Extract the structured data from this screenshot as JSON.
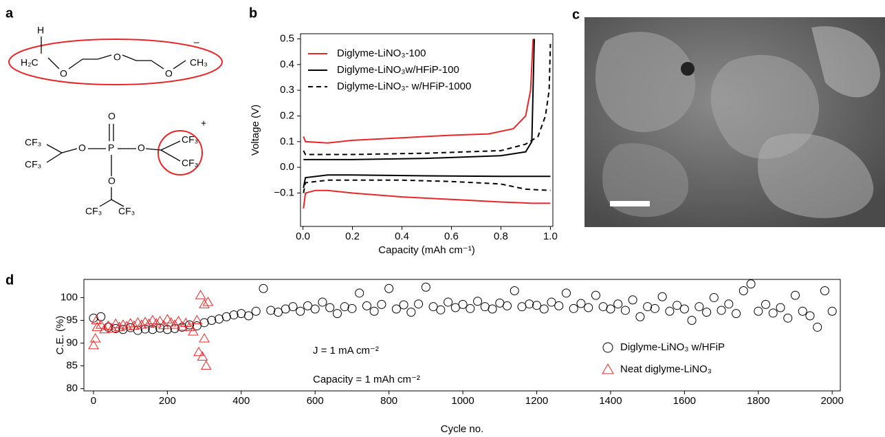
{
  "panel_labels": [
    "a",
    "b",
    "c",
    "d"
  ],
  "structures": {
    "top": {
      "atoms": [
        "H",
        "H₂C",
        "O",
        "O",
        "O",
        "CH₃"
      ],
      "charge": "–"
    },
    "bottom": {
      "atoms": [
        "O",
        "P",
        "O",
        "O",
        "O",
        "CF₃",
        "CF₃",
        "CF₃",
        "CF₃",
        "CF₃",
        "CF₃"
      ],
      "charge": "+"
    }
  },
  "chart_data": [
    {
      "type": "line",
      "xlabel": "Capacity (mAh cm⁻¹)",
      "ylabel": "Voltage (V)",
      "xlim": [
        -0.01,
        1.01
      ],
      "ylim": [
        -0.23,
        0.52
      ],
      "xticks": [
        {
          "value": 0,
          "label": "0.0"
        },
        0.2,
        0.4,
        0.6,
        0.8,
        {
          "value": 1,
          "label": "1.0"
        }
      ],
      "yticks": [
        {
          "value": -0.1,
          "label": "−0.1"
        },
        {
          "value": 0,
          "label": "0.0"
        },
        0.1,
        0.2,
        0.3,
        0.4,
        0.5
      ],
      "grid": false,
      "legend": "upper left",
      "series": [
        {
          "name": "Diglyme-LiNO₃-100",
          "color": "#e8262a",
          "dash": false,
          "x": [
            0.002,
            0.01,
            0.05,
            0.1,
            0.2,
            0.4,
            0.6,
            0.8,
            0.93,
            1.0,
            null,
            0.002,
            0.01,
            0.1,
            0.2,
            0.4,
            0.6,
            0.75,
            0.85,
            0.9,
            0.92,
            0.93
          ],
          "values": [
            -0.16,
            -0.1,
            -0.09,
            -0.09,
            -0.1,
            -0.115,
            -0.125,
            -0.135,
            -0.14,
            -0.14,
            null,
            0.12,
            0.1,
            0.095,
            0.105,
            0.115,
            0.125,
            0.13,
            0.15,
            0.2,
            0.3,
            0.5
          ]
        },
        {
          "name": "Diglyme-LiNO₃w/HFiP-100",
          "color": "#000000",
          "dash": false,
          "x": [
            0.002,
            0.01,
            0.1,
            0.2,
            0.5,
            0.8,
            1.0,
            null,
            0.002,
            0.2,
            0.5,
            0.8,
            0.9,
            0.925,
            0.935
          ],
          "values": [
            -0.08,
            -0.04,
            -0.03,
            -0.03,
            -0.033,
            -0.035,
            -0.035,
            null,
            0.03,
            0.03,
            0.035,
            0.045,
            0.06,
            0.1,
            0.5
          ]
        },
        {
          "name": "Diglyme-LiNO₃- w/HFiP-1000",
          "color": "#000000",
          "dash": true,
          "x": [
            0.002,
            0.01,
            0.1,
            0.4,
            0.6,
            0.8,
            0.9,
            1.0,
            null,
            0.002,
            0.01,
            0.2,
            0.5,
            0.8,
            0.9,
            0.95,
            0.98,
            0.995,
            1.0
          ],
          "values": [
            -0.1,
            -0.06,
            -0.05,
            -0.05,
            -0.055,
            -0.065,
            -0.085,
            -0.09,
            null,
            0.065,
            0.05,
            0.05,
            0.055,
            0.065,
            0.09,
            0.12,
            0.2,
            0.3,
            0.48
          ]
        }
      ]
    },
    {
      "type": "scatter",
      "xlabel": "Cycle no.",
      "ylabel": "C.E. (%)",
      "annotations": [
        "J = 1 mA cm⁻²",
        "Capacity = 1 mAh cm⁻²"
      ],
      "xlim": [
        -26,
        2022
      ],
      "ylim": [
        79.5,
        104
      ],
      "xticks": [
        0,
        200,
        400,
        600,
        800,
        1000,
        1200,
        1400,
        1600,
        1800,
        2000
      ],
      "yticks": [
        80,
        85,
        90,
        95,
        100
      ],
      "grid": false,
      "legend": "lower right",
      "series": [
        {
          "name": "Diglyme-LiNO₃ w/HFiP",
          "color": "#000000",
          "marker": "circle",
          "x": [
            0,
            20,
            40,
            60,
            80,
            100,
            120,
            140,
            160,
            180,
            200,
            220,
            240,
            260,
            280,
            300,
            320,
            340,
            360,
            380,
            400,
            420,
            440,
            460,
            480,
            500,
            520,
            540,
            560,
            580,
            600,
            620,
            640,
            660,
            680,
            700,
            720,
            740,
            760,
            780,
            800,
            820,
            840,
            860,
            880,
            900,
            920,
            940,
            960,
            980,
            1000,
            1020,
            1040,
            1060,
            1080,
            1100,
            1120,
            1140,
            1160,
            1180,
            1200,
            1220,
            1240,
            1260,
            1280,
            1300,
            1320,
            1340,
            1360,
            1380,
            1400,
            1420,
            1440,
            1460,
            1480,
            1500,
            1520,
            1540,
            1560,
            1580,
            1600,
            1620,
            1640,
            1660,
            1680,
            1700,
            1720,
            1740,
            1760,
            1780,
            1800,
            1820,
            1840,
            1860,
            1880,
            1900,
            1920,
            1940,
            1960,
            1980,
            2000
          ],
          "values": [
            95.5,
            95.8,
            93.5,
            93.2,
            93.0,
            93.4,
            92.8,
            93.1,
            93.0,
            93.3,
            93.0,
            93.2,
            93.5,
            94.0,
            93.8,
            94.5,
            95.0,
            95.3,
            95.8,
            96.2,
            96.5,
            96.0,
            97.0,
            102.0,
            97.2,
            96.8,
            97.5,
            98.0,
            97.0,
            98.2,
            97.5,
            99.0,
            97.8,
            96.5,
            98.0,
            97.6,
            101.0,
            98.2,
            97.0,
            98.5,
            102.0,
            97.5,
            98.4,
            96.8,
            98.6,
            102.3,
            98.0,
            97.3,
            99.0,
            97.8,
            98.5,
            97.6,
            99.2,
            98.0,
            97.5,
            98.8,
            98.2,
            101.5,
            98.0,
            98.6,
            98.3,
            97.5,
            99.0,
            98.2,
            101.0,
            97.6,
            98.7,
            97.8,
            100.5,
            98.0,
            97.5,
            98.6,
            97.2,
            99.5,
            95.8,
            98.0,
            97.6,
            100.2,
            97.0,
            98.3,
            97.5,
            95.0,
            98.0,
            96.8,
            100.0,
            97.2,
            98.6,
            96.5,
            101.5,
            103.0,
            97.0,
            98.5,
            96.6,
            97.8,
            95.5,
            100.5,
            97.0,
            96.0,
            93.5,
            101.5,
            97.0
          ]
        },
        {
          "name": "Neat diglyme-LiNO₃",
          "color": "#e8262a",
          "marker": "triangle",
          "x": [
            0,
            5,
            8,
            10,
            20,
            30,
            40,
            50,
            60,
            70,
            80,
            90,
            100,
            110,
            120,
            130,
            140,
            150,
            160,
            170,
            180,
            190,
            200,
            210,
            220,
            230,
            240,
            250,
            260,
            270,
            280,
            285,
            290,
            295,
            300,
            300,
            305,
            310
          ],
          "values": [
            89.5,
            91.0,
            95.0,
            93.5,
            94.0,
            93.0,
            93.8,
            93.2,
            94.2,
            93.5,
            94.0,
            93.7,
            94.3,
            93.8,
            94.5,
            94.0,
            94.6,
            94.2,
            95.0,
            94.3,
            94.8,
            93.9,
            95.2,
            94.5,
            94.0,
            94.8,
            93.6,
            94.4,
            93.5,
            92.5,
            95.0,
            88.0,
            100.5,
            87.0,
            91.0,
            98.5,
            85.0,
            99.0
          ]
        }
      ]
    }
  ]
}
